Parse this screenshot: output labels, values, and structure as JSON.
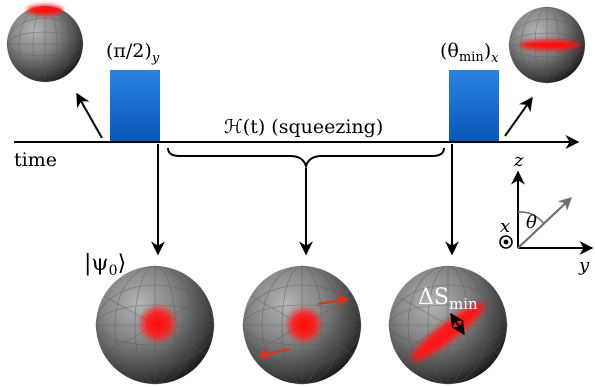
{
  "labels": {
    "pulse1": "(π/2)",
    "pulse1_sub": "y",
    "pulse2_main": "(θ",
    "pulse2_min": "min",
    "pulse2_close": ")",
    "pulse2_sub": "x",
    "hamiltonian": "ℋ(t) (squeezing)",
    "time": "time",
    "initial_state": "|ψ",
    "initial_state_sub": "0",
    "initial_state_close": "⟩",
    "delta_s": "ΔS",
    "delta_s_sub": "min",
    "axis_z": "z",
    "axis_x": "x",
    "axis_y": "y",
    "axis_theta": "θ"
  },
  "colors": {
    "pulse_top": "#2b83e0",
    "pulse_bottom": "#0a56b8",
    "sphere_light": "#a9a9a9",
    "sphere_dark": "#1e1e1e",
    "state_red": "#ff1010",
    "arrow_red": "#e53018",
    "axis_gray": "#6f6f6f"
  },
  "icons": {
    "axis_x": "out-of-page-dot-icon"
  }
}
